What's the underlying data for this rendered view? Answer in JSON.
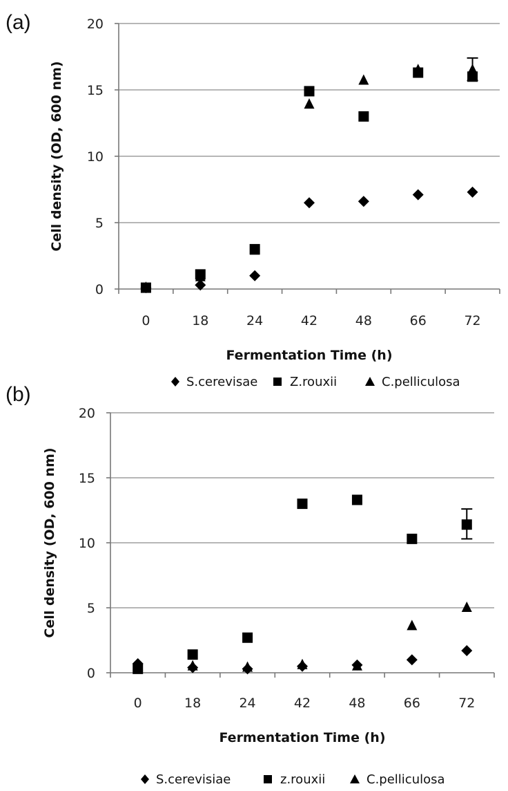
{
  "figure": {
    "colors": {
      "marker": "#000000",
      "grid": "#8a8a8a",
      "background": "#ffffff"
    }
  },
  "chart_data": [
    {
      "type": "scatter",
      "panel_label": "(a)",
      "xlabel": "Fermentation Time (h)",
      "ylabel": "Cell density (OD, 600 nm)",
      "categories": [
        "0",
        "18",
        "24",
        "42",
        "48",
        "66",
        "72"
      ],
      "ylim": [
        0,
        20
      ],
      "yticks": [
        0,
        5,
        10,
        15,
        20
      ],
      "grid": true,
      "legend_position": "bottom",
      "series": [
        {
          "name": "S.cerevisae",
          "marker": "diamond",
          "values": [
            0.1,
            0.3,
            1.0,
            6.5,
            6.6,
            7.1,
            7.3
          ]
        },
        {
          "name": "Z.rouxii",
          "marker": "square",
          "values": [
            0.1,
            1.1,
            3.0,
            14.9,
            13.0,
            16.3,
            16.0
          ]
        },
        {
          "name": "C.pelliculosa",
          "marker": "triangle",
          "values": [
            0.1,
            0.9,
            2.9,
            13.9,
            15.7,
            16.5,
            16.5
          ]
        }
      ],
      "error_bars": [
        {
          "series": "C.pelliculosa",
          "category": "72",
          "low": 15.7,
          "high": 17.4
        }
      ]
    },
    {
      "type": "scatter",
      "panel_label": "(b)",
      "xlabel": "Fermentation Time (h)",
      "ylabel": "Cell density (OD, 600 nm)",
      "categories": [
        "0",
        "18",
        "24",
        "42",
        "48",
        "66",
        "72"
      ],
      "ylim": [
        0,
        20
      ],
      "yticks": [
        0,
        5,
        10,
        15,
        20
      ],
      "grid": true,
      "legend_position": "bottom",
      "series": [
        {
          "name": "S.cerevisiae",
          "marker": "diamond",
          "values": [
            0.7,
            0.4,
            0.3,
            0.5,
            0.6,
            1.0,
            1.7
          ]
        },
        {
          "name": "z.rouxii",
          "marker": "square",
          "values": [
            0.3,
            1.4,
            2.7,
            13.0,
            13.3,
            10.3,
            11.4
          ]
        },
        {
          "name": "C.pelliculosa",
          "marker": "triangle",
          "values": [
            0.5,
            0.5,
            0.4,
            0.6,
            0.5,
            3.6,
            5.0
          ]
        }
      ],
      "error_bars": [
        {
          "series": "z.rouxii",
          "category": "72",
          "low": 10.3,
          "high": 12.6
        }
      ]
    }
  ]
}
